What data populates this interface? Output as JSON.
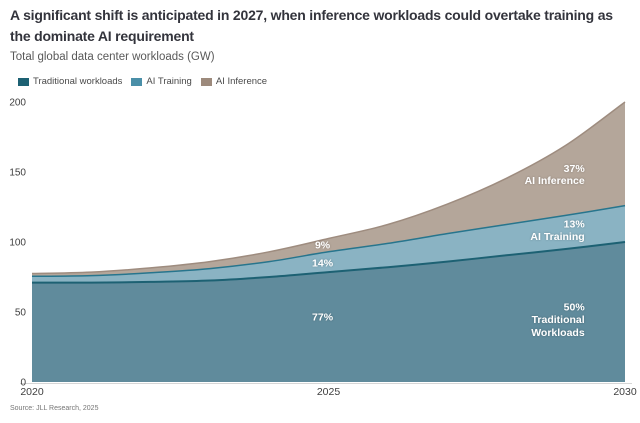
{
  "header": {
    "title": "A significant shift is anticipated in 2027, when inference workloads could overtake training as the dominate AI requirement",
    "subtitle": "Total global data center workloads (GW)"
  },
  "legend": {
    "items": [
      {
        "label": "Traditional workloads",
        "color": "#1d6173"
      },
      {
        "label": "AI Training",
        "color": "#4a8fa8"
      },
      {
        "label": "AI Inference",
        "color": "#9d8a7c"
      }
    ]
  },
  "chart_data": {
    "type": "area",
    "stacked": true,
    "title": "A significant shift is anticipated in 2027, when inference workloads could overtake training as the dominate AI requirement",
    "subtitle": "Total global data center workloads (GW)",
    "xlabel": "",
    "ylabel": "Total global data center workloads (GW)",
    "x": [
      2020,
      2021,
      2022,
      2023,
      2024,
      2025,
      2026,
      2027,
      2028,
      2029,
      2030
    ],
    "series": [
      {
        "name": "Traditional workloads",
        "fill": "#608b9c",
        "stroke": "#1d6173",
        "values": [
          71,
          71,
          71.5,
          72.5,
          75,
          78.5,
          82,
          86,
          90.5,
          95,
          100
        ]
      },
      {
        "name": "AI Training",
        "fill": "#8ab3c3",
        "stroke": "#27758d",
        "values": [
          4.5,
          5,
          6.5,
          8.5,
          11,
          14.5,
          17,
          20,
          22,
          24,
          26
        ]
      },
      {
        "name": "AI Inference",
        "fill": "#b4a69a",
        "stroke": "#9e8c7f",
        "values": [
          2,
          2.5,
          3.5,
          5,
          7,
          9.5,
          13.5,
          21,
          33,
          50,
          74
        ]
      }
    ],
    "ylim": [
      0,
      200
    ],
    "yticks": [
      0,
      50,
      100,
      150,
      200
    ],
    "xticks": [
      2020,
      2025,
      2030
    ],
    "grid": false,
    "legend_position": "top-left",
    "annotations": [
      {
        "text": "9%",
        "x": 2024.9,
        "y": 98,
        "anchor": "middle"
      },
      {
        "text": "14%",
        "x": 2024.9,
        "y": 85,
        "anchor": "middle"
      },
      {
        "text": "77%",
        "x": 2024.9,
        "y": 46.5,
        "anchor": "middle"
      },
      {
        "text": "37%",
        "x": 2029.32,
        "y": 152.5,
        "anchor": "end"
      },
      {
        "text": "AI Inference",
        "x": 2029.32,
        "y": 144,
        "anchor": "end"
      },
      {
        "text": "13%",
        "x": 2029.32,
        "y": 113,
        "anchor": "end"
      },
      {
        "text": "AI Training",
        "x": 2029.32,
        "y": 104,
        "anchor": "end"
      },
      {
        "text": "50%",
        "x": 2029.32,
        "y": 53.5,
        "anchor": "end"
      },
      {
        "text": "Traditional",
        "x": 2029.32,
        "y": 44.5,
        "anchor": "end"
      },
      {
        "text": "Workloads",
        "x": 2029.32,
        "y": 35.5,
        "anchor": "end"
      }
    ]
  },
  "source": "Source: JLL Research, 2025"
}
